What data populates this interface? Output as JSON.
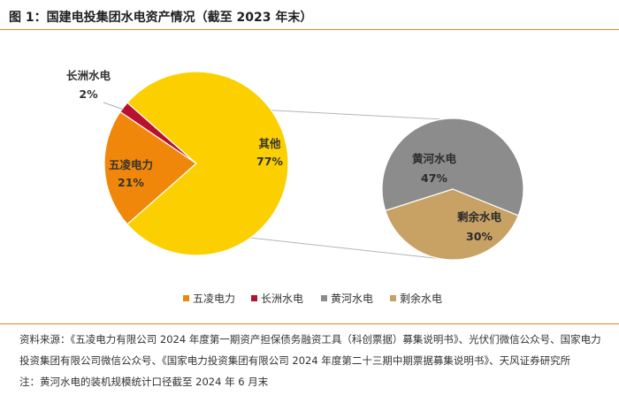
{
  "title": "图 1：国建电投集团水电资产情况（截至 2023 年末）",
  "chart_data": [
    {
      "type": "pie",
      "slices": [
        {
          "name": "五凌电力",
          "value": 21,
          "label": "21%",
          "color": "#f0870a"
        },
        {
          "name": "长洲水电",
          "value": 2,
          "label": "2%",
          "color": "#b8102e"
        },
        {
          "name": "其他",
          "value": 77,
          "label": "77%",
          "color": "#fbcf00"
        }
      ]
    },
    {
      "type": "pie",
      "slices": [
        {
          "name": "黄河水电",
          "value": 47,
          "label": "47%",
          "color": "#8c8c8c"
        },
        {
          "name": "剩余水电",
          "value": 30,
          "label": "30%",
          "color": "#c8a164"
        }
      ]
    }
  ],
  "legend": [
    {
      "name": "五凌电力",
      "color": "#f0870a"
    },
    {
      "name": "长洲水电",
      "color": "#b8102e"
    },
    {
      "name": "黄河水电",
      "color": "#8c8c8c"
    },
    {
      "name": "剩余水电",
      "color": "#c8a164"
    }
  ],
  "notes": {
    "source": "资料来源：《五凌电力有限公司 2024 年度第一期资产担保债务融资工具（科创票据）募集说明书》、光伏们微信公众号、国家电力投资集团有限公司微信公众号、《国家电力投资集团有限公司 2024 年度第二十三期中期票据募集说明书》、天风证券研究所",
    "footnote": "注：黄河水电的装机规模统计口径截至 2024 年 6 月末"
  }
}
